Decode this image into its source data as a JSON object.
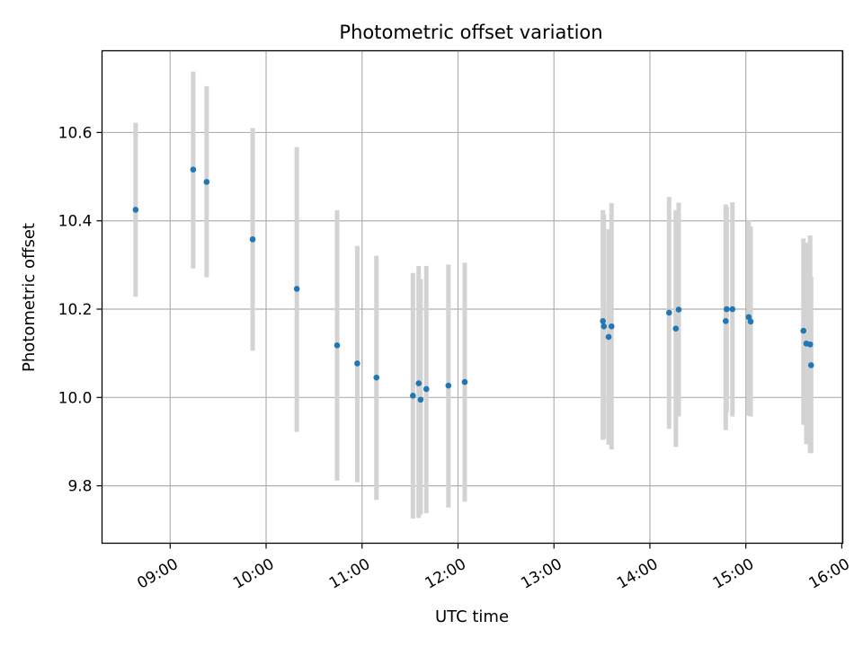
{
  "chart_data": {
    "type": "scatter",
    "title": "Photometric offset variation",
    "xlabel": "UTC time",
    "ylabel": "Photometric offset",
    "x_unit": "hours UTC",
    "xlim": [
      8.29,
      16.01
    ],
    "ylim": [
      9.67,
      10.785
    ],
    "grid": true,
    "x_ticks": [
      {
        "value": 9,
        "label": "09:00"
      },
      {
        "value": 10,
        "label": "10:00"
      },
      {
        "value": 11,
        "label": "11:00"
      },
      {
        "value": 12,
        "label": "12:00"
      },
      {
        "value": 13,
        "label": "13:00"
      },
      {
        "value": 14,
        "label": "14:00"
      },
      {
        "value": 15,
        "label": "15:00"
      },
      {
        "value": 16,
        "label": "16:00"
      }
    ],
    "y_ticks": [
      {
        "value": 9.8,
        "label": "9.8"
      },
      {
        "value": 10.0,
        "label": "10.0"
      },
      {
        "value": 10.2,
        "label": "10.2"
      },
      {
        "value": 10.4,
        "label": "10.4"
      },
      {
        "value": 10.6,
        "label": "10.6"
      }
    ],
    "colors": {
      "point": "#1f77b4",
      "errorbar": "#d3d3d3",
      "grid": "#b0b0b0"
    },
    "points": [
      {
        "x": 8.64,
        "y": 10.425,
        "lo": 10.228,
        "hi": 10.622
      },
      {
        "x": 9.24,
        "y": 10.516,
        "lo": 10.292,
        "hi": 10.738
      },
      {
        "x": 9.38,
        "y": 10.488,
        "lo": 10.272,
        "hi": 10.705
      },
      {
        "x": 9.86,
        "y": 10.358,
        "lo": 10.106,
        "hi": 10.61
      },
      {
        "x": 10.32,
        "y": 10.246,
        "lo": 9.922,
        "hi": 10.567
      },
      {
        "x": 10.74,
        "y": 10.118,
        "lo": 9.812,
        "hi": 10.424
      },
      {
        "x": 10.95,
        "y": 10.077,
        "lo": 9.808,
        "hi": 10.343
      },
      {
        "x": 11.15,
        "y": 10.045,
        "lo": 9.768,
        "hi": 10.321
      },
      {
        "x": 11.53,
        "y": 10.004,
        "lo": 9.726,
        "hi": 10.282
      },
      {
        "x": 11.59,
        "y": 10.032,
        "lo": 9.727,
        "hi": 10.298
      },
      {
        "x": 11.61,
        "y": 9.995,
        "lo": 9.735,
        "hi": 10.268
      },
      {
        "x": 11.67,
        "y": 10.019,
        "lo": 9.738,
        "hi": 10.298
      },
      {
        "x": 11.9,
        "y": 10.027,
        "lo": 9.751,
        "hi": 10.301
      },
      {
        "x": 12.07,
        "y": 10.035,
        "lo": 9.764,
        "hi": 10.305
      },
      {
        "x": 13.51,
        "y": 10.173,
        "lo": 9.904,
        "hi": 10.424
      },
      {
        "x": 13.52,
        "y": 10.161,
        "lo": 9.907,
        "hi": 10.415
      },
      {
        "x": 13.57,
        "y": 10.137,
        "lo": 9.893,
        "hi": 10.381
      },
      {
        "x": 13.6,
        "y": 10.161,
        "lo": 9.882,
        "hi": 10.44
      },
      {
        "x": 14.2,
        "y": 10.192,
        "lo": 9.929,
        "hi": 10.454
      },
      {
        "x": 14.27,
        "y": 10.156,
        "lo": 9.888,
        "hi": 10.424
      },
      {
        "x": 14.3,
        "y": 10.199,
        "lo": 9.957,
        "hi": 10.441
      },
      {
        "x": 14.79,
        "y": 10.173,
        "lo": 9.926,
        "hi": 10.437
      },
      {
        "x": 14.8,
        "y": 10.2,
        "lo": 9.966,
        "hi": 10.432
      },
      {
        "x": 14.86,
        "y": 10.2,
        "lo": 9.957,
        "hi": 10.442
      },
      {
        "x": 15.03,
        "y": 10.182,
        "lo": 9.959,
        "hi": 10.402
      },
      {
        "x": 15.05,
        "y": 10.172,
        "lo": 9.957,
        "hi": 10.387
      },
      {
        "x": 15.6,
        "y": 10.151,
        "lo": 9.938,
        "hi": 10.36
      },
      {
        "x": 15.63,
        "y": 10.122,
        "lo": 9.894,
        "hi": 10.35
      },
      {
        "x": 15.67,
        "y": 10.12,
        "lo": 9.874,
        "hi": 10.367
      },
      {
        "x": 15.68,
        "y": 10.073,
        "lo": 9.874,
        "hi": 10.273
      }
    ]
  }
}
